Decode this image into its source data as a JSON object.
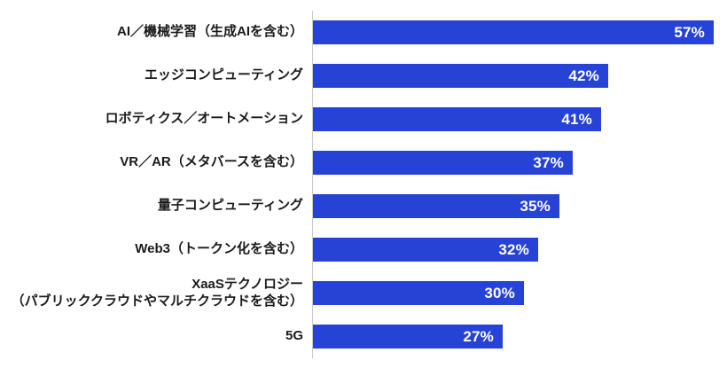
{
  "chart_data": {
    "type": "bar",
    "orientation": "horizontal",
    "title": "",
    "xlabel": "",
    "ylabel": "",
    "xlim": [
      0,
      60
    ],
    "grid": false,
    "legend": false,
    "bar_color": "#2743d6",
    "value_label_color": "#ffffff",
    "categories": [
      "AI／機械学習（生成AIを含む）",
      "エッジコンピューティング",
      "ロボティクス／オートメーション",
      "VR／AR（メタバースを含む）",
      "量子コンピューティング",
      "Web3（トークン化を含む）",
      "XaaSテクノロジー\n（パブリッククラウドやマルチクラウドを含む）",
      "5G"
    ],
    "values": [
      57,
      42,
      41,
      37,
      35,
      32,
      30,
      27
    ],
    "value_labels": [
      "57%",
      "42%",
      "41%",
      "37%",
      "35%",
      "32%",
      "30%",
      "27%"
    ]
  }
}
